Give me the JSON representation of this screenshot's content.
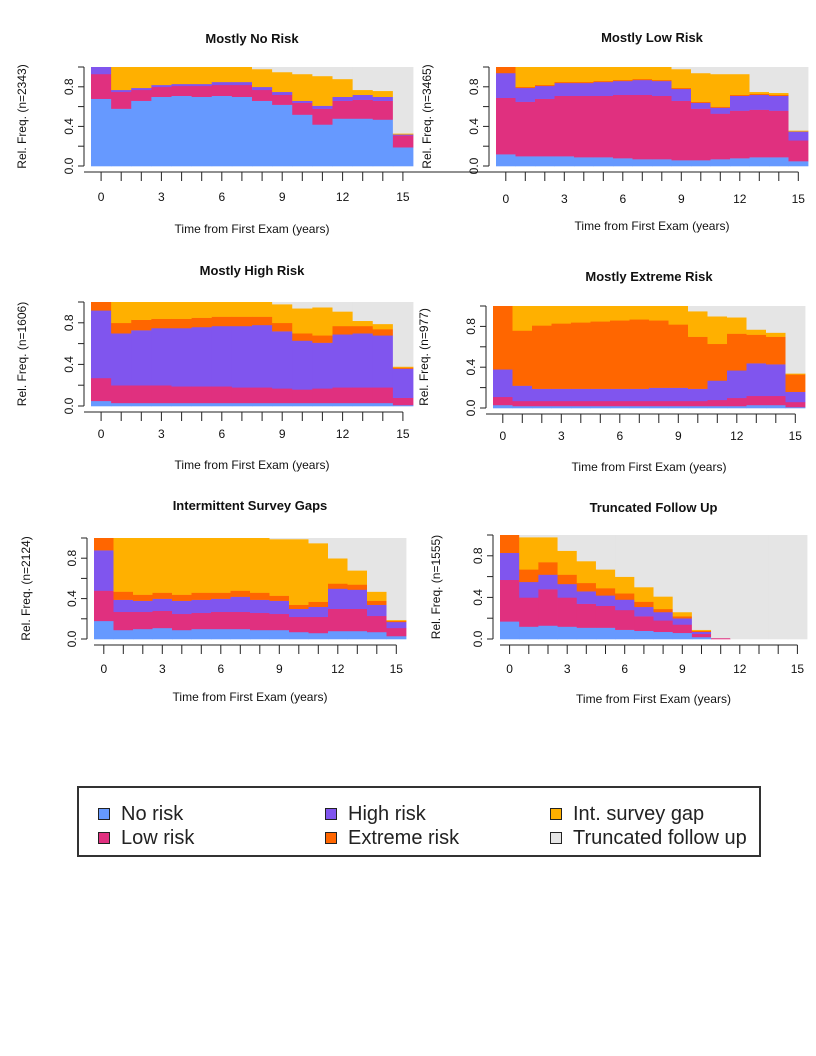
{
  "state_colors": {
    "no_risk": "#6699FF",
    "low_risk": "#E0307F",
    "high_risk": "#8055EE",
    "extreme_risk": "#FF6600",
    "int_survey_gap": "#FFB000",
    "truncated_follow_up": "#E5E5E5"
  },
  "legend": [
    {
      "key": "no_risk",
      "label": "No risk"
    },
    {
      "key": "low_risk",
      "label": "Low risk"
    },
    {
      "key": "high_risk",
      "label": "High risk"
    },
    {
      "key": "extreme_risk",
      "label": "Extreme risk"
    },
    {
      "key": "int_survey_gap",
      "label": "Int. survey gap"
    },
    {
      "key": "truncated_follow_up",
      "label": "Truncated follow up"
    }
  ],
  "chart_data": [
    {
      "type": "area",
      "title": "Mostly No Risk",
      "ylabel": "Rel. Freq. (n=2343)",
      "xlabel": "Time from First Exam (years)",
      "xlim": [
        0,
        16
      ],
      "ylim": [
        0,
        1
      ],
      "x_ticks": [
        0,
        3,
        6,
        9,
        12,
        15
      ],
      "y_ticks": [
        "0.0",
        "0.4",
        "0.8"
      ],
      "grid": false,
      "x": [
        0,
        1,
        2,
        3,
        4,
        5,
        6,
        7,
        8,
        9,
        10,
        11,
        12,
        13,
        14,
        15
      ],
      "series": [
        {
          "key": "no_risk",
          "values": [
            0.68,
            0.58,
            0.66,
            0.7,
            0.71,
            0.7,
            0.71,
            0.7,
            0.66,
            0.62,
            0.52,
            0.42,
            0.48,
            0.48,
            0.47,
            0.19
          ]
        },
        {
          "key": "low_risk",
          "values": [
            0.25,
            0.17,
            0.11,
            0.1,
            0.1,
            0.11,
            0.11,
            0.12,
            0.11,
            0.1,
            0.12,
            0.16,
            0.18,
            0.19,
            0.19,
            0.12
          ]
        },
        {
          "key": "high_risk",
          "values": [
            0.07,
            0.02,
            0.02,
            0.02,
            0.02,
            0.02,
            0.03,
            0.03,
            0.03,
            0.03,
            0.02,
            0.03,
            0.04,
            0.05,
            0.04,
            0.01
          ]
        },
        {
          "key": "extreme_risk",
          "values": [
            0,
            0,
            0,
            0,
            0,
            0,
            0,
            0,
            0,
            0,
            0,
            0,
            0,
            0,
            0,
            0
          ]
        },
        {
          "key": "int_survey_gap",
          "values": [
            0,
            0.23,
            0.21,
            0.18,
            0.17,
            0.17,
            0.15,
            0.15,
            0.18,
            0.2,
            0.27,
            0.3,
            0.18,
            0.05,
            0.06,
            0.01
          ]
        },
        {
          "key": "truncated_follow_up",
          "values": [
            0,
            0,
            0,
            0,
            0,
            0,
            0,
            0,
            0.02,
            0.05,
            0.07,
            0.09,
            0.12,
            0.23,
            0.24,
            0.67
          ]
        }
      ]
    },
    {
      "type": "area",
      "title": "Mostly Low Risk",
      "ylabel": "Rel. Freq. (n=3465)",
      "xlabel": "Time from First Exam (years)",
      "xlim": [
        0,
        16
      ],
      "ylim": [
        0,
        1
      ],
      "x_ticks": [
        0,
        3,
        6,
        9,
        12,
        15
      ],
      "y_ticks": [
        "0.0",
        "0.4",
        "0.8"
      ],
      "grid": false,
      "x": [
        0,
        1,
        2,
        3,
        4,
        5,
        6,
        7,
        8,
        9,
        10,
        11,
        12,
        13,
        14,
        15
      ],
      "series": [
        {
          "key": "no_risk",
          "values": [
            0.12,
            0.1,
            0.1,
            0.1,
            0.09,
            0.09,
            0.08,
            0.07,
            0.07,
            0.06,
            0.06,
            0.07,
            0.08,
            0.09,
            0.09,
            0.05
          ]
        },
        {
          "key": "low_risk",
          "values": [
            0.57,
            0.55,
            0.58,
            0.61,
            0.62,
            0.62,
            0.64,
            0.65,
            0.64,
            0.6,
            0.52,
            0.46,
            0.48,
            0.48,
            0.47,
            0.21
          ]
        },
        {
          "key": "high_risk",
          "values": [
            0.25,
            0.14,
            0.13,
            0.13,
            0.13,
            0.14,
            0.14,
            0.15,
            0.15,
            0.12,
            0.06,
            0.06,
            0.15,
            0.15,
            0.15,
            0.09
          ]
        },
        {
          "key": "extreme_risk",
          "values": [
            0.06,
            0.01,
            0.01,
            0.01,
            0.01,
            0.01,
            0.01,
            0.01,
            0.01,
            0.01,
            0.01,
            0.01,
            0.01,
            0.01,
            0.01,
            0
          ]
        },
        {
          "key": "int_survey_gap",
          "values": [
            0,
            0.2,
            0.18,
            0.15,
            0.15,
            0.14,
            0.13,
            0.12,
            0.13,
            0.19,
            0.29,
            0.33,
            0.21,
            0.02,
            0.02,
            0.01
          ]
        },
        {
          "key": "truncated_follow_up",
          "values": [
            0,
            0,
            0,
            0,
            0,
            0,
            0,
            0,
            0,
            0.02,
            0.06,
            0.07,
            0.07,
            0.25,
            0.26,
            0.64
          ]
        }
      ]
    },
    {
      "type": "area",
      "title": "Mostly High Risk",
      "ylabel": "Rel. Freq. (n=1606)",
      "xlabel": "Time from First Exam (years)",
      "xlim": [
        0,
        16
      ],
      "ylim": [
        0,
        1
      ],
      "x_ticks": [
        0,
        3,
        6,
        9,
        12,
        15
      ],
      "y_ticks": [
        "0.0",
        "0.4",
        "0.8"
      ],
      "grid": false,
      "x": [
        0,
        1,
        2,
        3,
        4,
        5,
        6,
        7,
        8,
        9,
        10,
        11,
        12,
        13,
        14,
        15
      ],
      "series": [
        {
          "key": "no_risk",
          "values": [
            0.05,
            0.03,
            0.03,
            0.03,
            0.03,
            0.03,
            0.03,
            0.03,
            0.03,
            0.03,
            0.03,
            0.03,
            0.03,
            0.03,
            0.03,
            0.01
          ]
        },
        {
          "key": "low_risk",
          "values": [
            0.22,
            0.17,
            0.17,
            0.17,
            0.16,
            0.16,
            0.16,
            0.15,
            0.15,
            0.14,
            0.13,
            0.14,
            0.15,
            0.15,
            0.15,
            0.07
          ]
        },
        {
          "key": "high_risk",
          "values": [
            0.65,
            0.5,
            0.53,
            0.55,
            0.56,
            0.57,
            0.58,
            0.59,
            0.6,
            0.55,
            0.47,
            0.44,
            0.51,
            0.52,
            0.5,
            0.28
          ]
        },
        {
          "key": "extreme_risk",
          "values": [
            0.08,
            0.1,
            0.1,
            0.09,
            0.09,
            0.09,
            0.09,
            0.09,
            0.08,
            0.08,
            0.07,
            0.07,
            0.08,
            0.07,
            0.06,
            0.01
          ]
        },
        {
          "key": "int_survey_gap",
          "values": [
            0,
            0.2,
            0.17,
            0.16,
            0.16,
            0.15,
            0.14,
            0.14,
            0.14,
            0.18,
            0.24,
            0.27,
            0.14,
            0.05,
            0.05,
            0.01
          ]
        },
        {
          "key": "truncated_follow_up",
          "values": [
            0,
            0,
            0,
            0,
            0,
            0,
            0,
            0,
            0,
            0.02,
            0.06,
            0.05,
            0.09,
            0.18,
            0.21,
            0.62
          ]
        }
      ]
    },
    {
      "type": "area",
      "title": "Mostly Extreme Risk",
      "ylabel": "Rel. Freq. (n=977)",
      "xlabel": "Time from First Exam (years)",
      "xlim": [
        0,
        16
      ],
      "ylim": [
        0,
        1
      ],
      "x_ticks": [
        0,
        3,
        6,
        9,
        12,
        15
      ],
      "y_ticks": [
        "0.0",
        "0.4",
        "0.8"
      ],
      "grid": false,
      "x": [
        0,
        1,
        2,
        3,
        4,
        5,
        6,
        7,
        8,
        9,
        10,
        11,
        12,
        13,
        14,
        15
      ],
      "series": [
        {
          "key": "no_risk",
          "values": [
            0.03,
            0.02,
            0.02,
            0.02,
            0.02,
            0.02,
            0.02,
            0.02,
            0.02,
            0.02,
            0.02,
            0.02,
            0.02,
            0.03,
            0.03,
            0.01
          ]
        },
        {
          "key": "low_risk",
          "values": [
            0.08,
            0.05,
            0.05,
            0.05,
            0.05,
            0.05,
            0.05,
            0.05,
            0.05,
            0.05,
            0.05,
            0.06,
            0.08,
            0.09,
            0.09,
            0.05
          ]
        },
        {
          "key": "high_risk",
          "values": [
            0.27,
            0.15,
            0.12,
            0.12,
            0.12,
            0.12,
            0.12,
            0.12,
            0.13,
            0.13,
            0.12,
            0.19,
            0.27,
            0.32,
            0.31,
            0.1
          ]
        },
        {
          "key": "extreme_risk",
          "values": [
            0.62,
            0.54,
            0.62,
            0.64,
            0.65,
            0.66,
            0.67,
            0.68,
            0.66,
            0.62,
            0.51,
            0.36,
            0.36,
            0.28,
            0.27,
            0.17
          ]
        },
        {
          "key": "int_survey_gap",
          "values": [
            0,
            0.24,
            0.19,
            0.17,
            0.16,
            0.15,
            0.14,
            0.13,
            0.14,
            0.18,
            0.25,
            0.27,
            0.16,
            0.05,
            0.04,
            0.01
          ]
        },
        {
          "key": "truncated_follow_up",
          "values": [
            0,
            0,
            0,
            0,
            0,
            0,
            0,
            0,
            0,
            0,
            0.05,
            0.1,
            0.11,
            0.23,
            0.26,
            0.66
          ]
        }
      ]
    },
    {
      "type": "area",
      "title": "Intermittent Survey Gaps",
      "ylabel": "Rel. Freq. (n=2124)",
      "xlabel": "Time from First Exam (years)",
      "xlim": [
        0,
        16
      ],
      "ylim": [
        0,
        1
      ],
      "x_ticks": [
        0,
        3,
        6,
        9,
        12,
        15
      ],
      "y_ticks": [
        "0.0",
        "0.4",
        "0.8"
      ],
      "grid": false,
      "x": [
        0,
        1,
        2,
        3,
        4,
        5,
        6,
        7,
        8,
        9,
        10,
        11,
        12,
        13,
        14,
        15
      ],
      "series": [
        {
          "key": "no_risk",
          "values": [
            0.18,
            0.09,
            0.1,
            0.11,
            0.09,
            0.1,
            0.1,
            0.1,
            0.09,
            0.09,
            0.07,
            0.06,
            0.08,
            0.08,
            0.07,
            0.03
          ]
        },
        {
          "key": "low_risk",
          "values": [
            0.3,
            0.18,
            0.17,
            0.17,
            0.16,
            0.16,
            0.17,
            0.17,
            0.17,
            0.16,
            0.15,
            0.16,
            0.22,
            0.22,
            0.16,
            0.08
          ]
        },
        {
          "key": "high_risk",
          "values": [
            0.4,
            0.12,
            0.11,
            0.12,
            0.13,
            0.13,
            0.13,
            0.15,
            0.13,
            0.13,
            0.08,
            0.1,
            0.2,
            0.19,
            0.11,
            0.06
          ]
        },
        {
          "key": "extreme_risk",
          "values": [
            0.12,
            0.08,
            0.06,
            0.06,
            0.06,
            0.07,
            0.06,
            0.06,
            0.07,
            0.05,
            0.04,
            0.05,
            0.05,
            0.05,
            0.04,
            0.01
          ]
        },
        {
          "key": "int_survey_gap",
          "values": [
            0,
            0.53,
            0.56,
            0.54,
            0.56,
            0.54,
            0.54,
            0.52,
            0.54,
            0.56,
            0.65,
            0.58,
            0.25,
            0.14,
            0.09,
            0.01
          ]
        },
        {
          "key": "truncated_follow_up",
          "values": [
            0,
            0,
            0,
            0,
            0,
            0,
            0,
            0,
            0,
            0.01,
            0.01,
            0.05,
            0.2,
            0.32,
            0.53,
            0.81
          ]
        }
      ]
    },
    {
      "type": "area",
      "title": "Truncated Follow Up",
      "ylabel": "Rel. Freq. (n=1555)",
      "xlabel": "Time from First Exam (years)",
      "xlim": [
        0,
        16
      ],
      "ylim": [
        0,
        1
      ],
      "x_ticks": [
        0,
        3,
        6,
        9,
        12,
        15
      ],
      "y_ticks": [
        "0.0",
        "0.4",
        "0.8"
      ],
      "grid": false,
      "x": [
        0,
        1,
        2,
        3,
        4,
        5,
        6,
        7,
        8,
        9,
        10,
        11,
        12,
        13,
        14,
        15
      ],
      "series": [
        {
          "key": "no_risk",
          "values": [
            0.17,
            0.12,
            0.13,
            0.12,
            0.11,
            0.11,
            0.09,
            0.08,
            0.07,
            0.06,
            0.02,
            0,
            0,
            0,
            0,
            0
          ]
        },
        {
          "key": "low_risk",
          "values": [
            0.4,
            0.28,
            0.35,
            0.28,
            0.23,
            0.21,
            0.19,
            0.14,
            0.11,
            0.08,
            0.03,
            0.01,
            0,
            0,
            0,
            0
          ]
        },
        {
          "key": "high_risk",
          "values": [
            0.26,
            0.15,
            0.14,
            0.13,
            0.12,
            0.1,
            0.1,
            0.09,
            0.08,
            0.06,
            0.02,
            0,
            0,
            0,
            0,
            0
          ]
        },
        {
          "key": "extreme_risk",
          "values": [
            0.17,
            0.12,
            0.12,
            0.09,
            0.08,
            0.07,
            0.06,
            0.05,
            0.03,
            0.02,
            0.01,
            0,
            0,
            0,
            0,
            0
          ]
        },
        {
          "key": "int_survey_gap",
          "values": [
            0,
            0.31,
            0.24,
            0.23,
            0.21,
            0.18,
            0.16,
            0.14,
            0.12,
            0.04,
            0.01,
            0,
            0,
            0,
            0,
            0
          ]
        },
        {
          "key": "truncated_follow_up",
          "values": [
            0,
            0.02,
            0.02,
            0.15,
            0.25,
            0.33,
            0.4,
            0.5,
            0.59,
            0.74,
            0.91,
            0.99,
            1,
            1,
            1,
            1
          ]
        }
      ]
    }
  ]
}
